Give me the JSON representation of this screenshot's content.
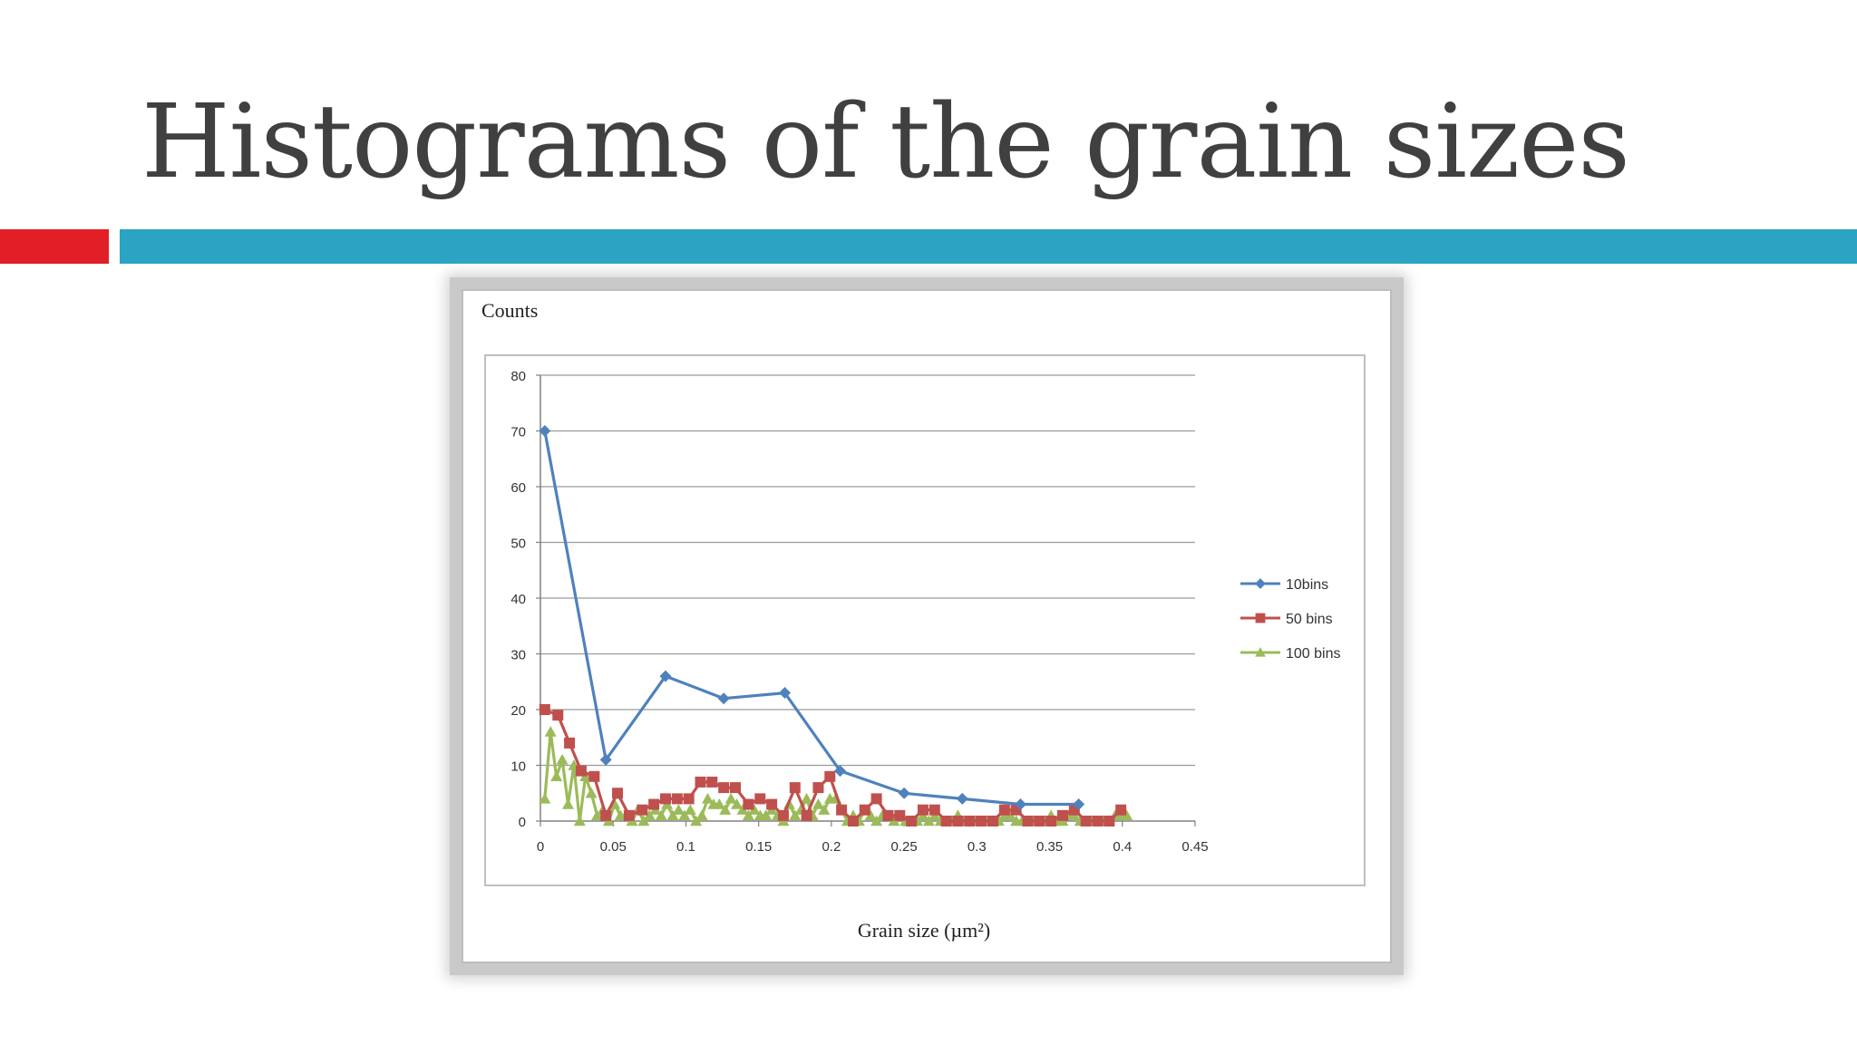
{
  "slide": {
    "title": "Histograms of the grain sizes"
  },
  "colors": {
    "accent_red": "#e21f26",
    "accent_blue": "#2ba3c2",
    "title_text": "#404040"
  },
  "chart_data": {
    "type": "line",
    "title": "",
    "ylabel": "Counts",
    "xlabel": "Grain size (µm²)",
    "xlim": [
      0,
      0.45
    ],
    "ylim": [
      0,
      80
    ],
    "x_ticks": [
      "0",
      "0.05",
      "0.1",
      "0.15",
      "0.2",
      "0.25",
      "0.3",
      "0.35",
      "0.4",
      "0.45"
    ],
    "y_ticks": [
      "0",
      "10",
      "20",
      "30",
      "40",
      "50",
      "60",
      "70",
      "80"
    ],
    "grid": "horizontal",
    "legend_position": "right",
    "series": [
      {
        "name": "10bins",
        "color": "#4f81bd",
        "marker": "diamond",
        "x": [
          0.003,
          0.045,
          0.086,
          0.126,
          0.168,
          0.206,
          0.25,
          0.29,
          0.33,
          0.37
        ],
        "y": [
          70,
          11,
          26,
          22,
          23,
          9,
          5,
          4,
          3,
          3
        ]
      },
      {
        "name": "50 bins",
        "color": "#c0504d",
        "marker": "square",
        "x": [
          0.003,
          0.012,
          0.02,
          0.028,
          0.037,
          0.045,
          0.053,
          0.061,
          0.07,
          0.078,
          0.086,
          0.094,
          0.102,
          0.11,
          0.118,
          0.126,
          0.134,
          0.143,
          0.151,
          0.159,
          0.167,
          0.175,
          0.183,
          0.191,
          0.199,
          0.207,
          0.215,
          0.223,
          0.231,
          0.239,
          0.247,
          0.255,
          0.263,
          0.271,
          0.279,
          0.287,
          0.295,
          0.303,
          0.311,
          0.319,
          0.327,
          0.335,
          0.343,
          0.351,
          0.359,
          0.367,
          0.375,
          0.383,
          0.391,
          0.399
        ],
        "y": [
          20,
          19,
          14,
          9,
          8,
          1,
          5,
          1,
          2,
          3,
          4,
          4,
          4,
          7,
          7,
          6,
          6,
          3,
          4,
          3,
          1,
          6,
          1,
          6,
          8,
          2,
          0,
          2,
          4,
          1,
          1,
          0,
          2,
          2,
          0,
          0,
          0,
          0,
          0,
          2,
          2,
          0,
          0,
          0,
          1,
          2,
          0,
          0,
          0,
          2
        ]
      },
      {
        "name": "100 bins",
        "color": "#9bbb59",
        "marker": "triangle",
        "x": [
          0.003,
          0.007,
          0.011,
          0.015,
          0.019,
          0.023,
          0.027,
          0.031,
          0.035,
          0.039,
          0.043,
          0.047,
          0.051,
          0.055,
          0.059,
          0.063,
          0.067,
          0.071,
          0.075,
          0.079,
          0.083,
          0.087,
          0.091,
          0.095,
          0.099,
          0.103,
          0.107,
          0.111,
          0.115,
          0.119,
          0.123,
          0.127,
          0.131,
          0.135,
          0.139,
          0.143,
          0.147,
          0.151,
          0.155,
          0.159,
          0.163,
          0.167,
          0.171,
          0.175,
          0.179,
          0.183,
          0.187,
          0.191,
          0.195,
          0.199,
          0.203,
          0.207,
          0.211,
          0.215,
          0.219,
          0.223,
          0.227,
          0.231,
          0.235,
          0.239,
          0.243,
          0.247,
          0.251,
          0.255,
          0.259,
          0.263,
          0.267,
          0.271,
          0.275,
          0.279,
          0.283,
          0.287,
          0.291,
          0.295,
          0.299,
          0.303,
          0.307,
          0.311,
          0.315,
          0.319,
          0.323,
          0.327,
          0.331,
          0.335,
          0.339,
          0.343,
          0.347,
          0.351,
          0.355,
          0.359,
          0.363,
          0.367,
          0.371,
          0.375,
          0.379,
          0.383,
          0.387,
          0.391,
          0.395,
          0.399,
          0.403
        ],
        "y": [
          4,
          16,
          8,
          11,
          3,
          10,
          0,
          8,
          5,
          1,
          2,
          0,
          3,
          1,
          1,
          0,
          2,
          0,
          1,
          2,
          1,
          3,
          1,
          2,
          1,
          2,
          0,
          1,
          4,
          3,
          3,
          2,
          4,
          3,
          2,
          1,
          2,
          1,
          1,
          2,
          1,
          0,
          3,
          1,
          2,
          4,
          1,
          3,
          2,
          4,
          4,
          2,
          0,
          1,
          0,
          2,
          1,
          0,
          1,
          1,
          0,
          1,
          0,
          0,
          0,
          1,
          0,
          1,
          0,
          0,
          0,
          1,
          0,
          0,
          0,
          0,
          0,
          0,
          0,
          1,
          1,
          0,
          0,
          0,
          0,
          0,
          0,
          1,
          0,
          0,
          1,
          1,
          0,
          0,
          0,
          0,
          0,
          0,
          1,
          1,
          1
        ]
      }
    ]
  }
}
